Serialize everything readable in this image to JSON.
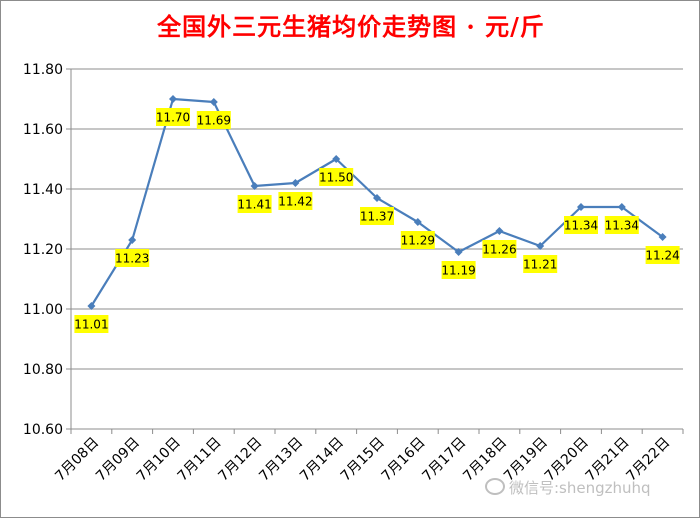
{
  "title": "全国外三元生猪均价走势图 · 元/斤",
  "watermark": "微信号:shengzhuhq",
  "chart_data": {
    "type": "line",
    "title": "全国外三元生猪均价走势图 · 元/斤",
    "xlabel": "",
    "ylabel": "",
    "categories": [
      "7月08日",
      "7月09日",
      "7月10日",
      "7月11日",
      "7月12日",
      "7月13日",
      "7月14日",
      "7月15日",
      "7月16日",
      "7月17日",
      "7月18日",
      "7月19日",
      "7月20日",
      "7月21日",
      "7月22日"
    ],
    "values": [
      11.01,
      11.23,
      11.7,
      11.69,
      11.41,
      11.42,
      11.5,
      11.37,
      11.29,
      11.19,
      11.26,
      11.21,
      11.34,
      11.34,
      11.24
    ],
    "data_labels": [
      "11.01",
      "11.23",
      "11.70",
      "11.69",
      "11.41",
      "11.42",
      "11.50",
      "11.37",
      "11.29",
      "11.19",
      "11.26",
      "11.21",
      "11.34",
      "11.34",
      "11.24"
    ],
    "yticks": [
      "10.60",
      "10.80",
      "11.00",
      "11.20",
      "11.40",
      "11.60",
      "11.80"
    ],
    "ylim": [
      10.6,
      11.8
    ],
    "grid": "horizontal",
    "legend": "none",
    "line_color": "#4a7ebb",
    "label_bg_color": "#ffff00",
    "title_color": "#ff0000"
  }
}
